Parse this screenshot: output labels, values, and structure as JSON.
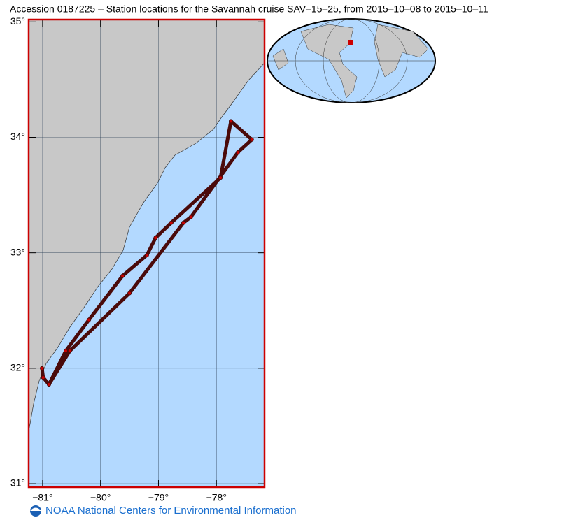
{
  "title": "Accession 0187225 – Station locations for the Savannah cruise SAV–15–25, from 2015–10–08 to 2015–10–11",
  "map": {
    "xlim": [
      -81.24,
      -77.17
    ],
    "ylim": [
      30.97,
      35.02
    ],
    "xticks": [
      {
        "value": -81,
        "label": "−81°"
      },
      {
        "value": -80,
        "label": "−80°"
      },
      {
        "value": -79,
        "label": "−79°"
      },
      {
        "value": -78,
        "label": "−78°"
      }
    ],
    "yticks": [
      {
        "value": 31,
        "label": "31°"
      },
      {
        "value": 32,
        "label": "32°"
      },
      {
        "value": 33,
        "label": "33°"
      },
      {
        "value": 34,
        "label": "34°"
      },
      {
        "value": 35,
        "label": "35°"
      }
    ],
    "grid": true,
    "track": {
      "color": "#4a0a0a",
      "lon": [
        -81.01,
        -80.99,
        -80.89,
        -80.6,
        -80.2,
        -79.62,
        -79.2,
        -79.05,
        -78.78,
        -77.93,
        -77.75,
        -77.39,
        -77.63,
        -78.44,
        -78.57,
        -79.5,
        -80.53,
        -80.89
      ],
      "lat": [
        32.0,
        31.92,
        31.86,
        32.15,
        32.42,
        32.8,
        32.98,
        33.13,
        33.26,
        33.65,
        34.14,
        33.98,
        33.87,
        33.31,
        33.26,
        32.65,
        32.15,
        31.86
      ]
    }
  },
  "footer": "NOAA National Centers for Environmental Information"
}
